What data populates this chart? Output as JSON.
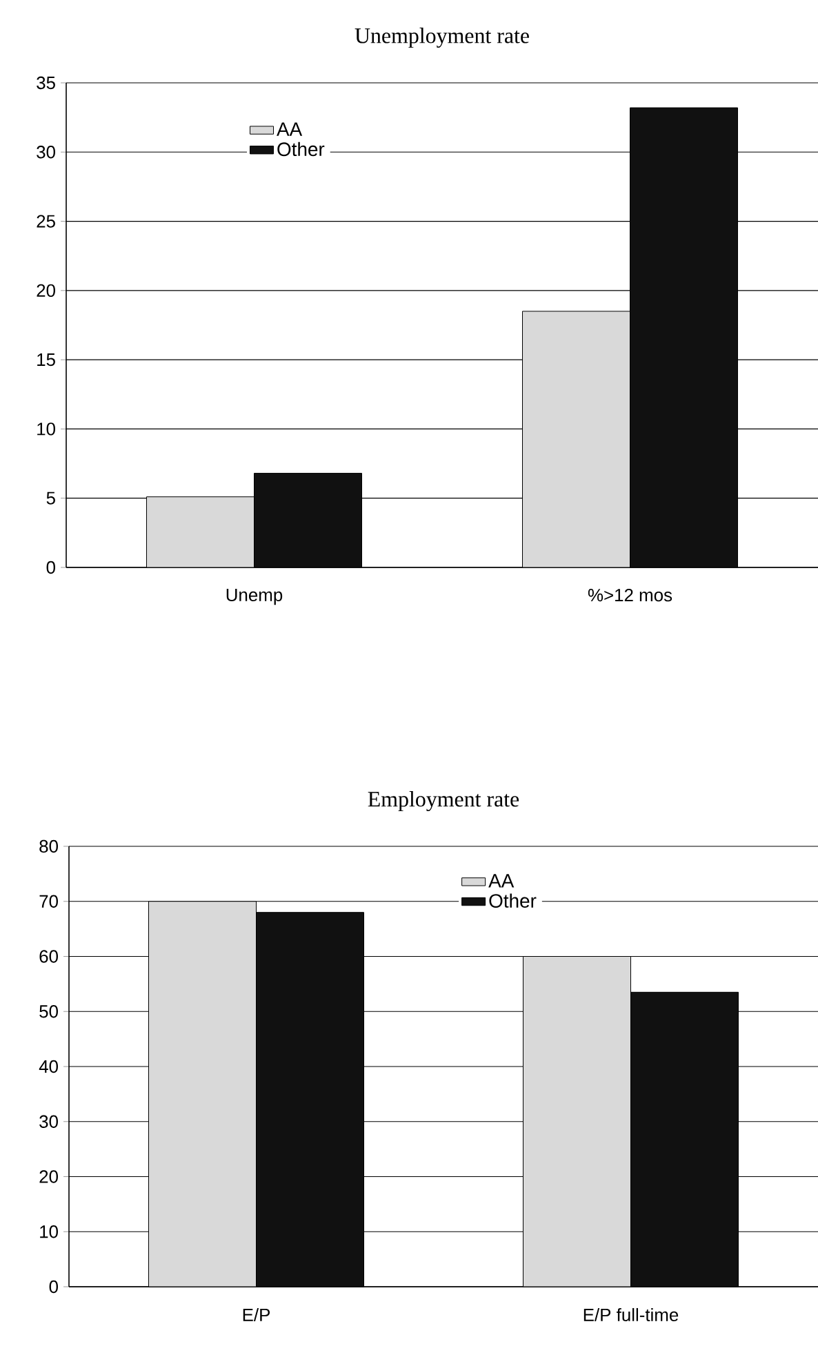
{
  "chart_data": [
    {
      "type": "bar",
      "title": "Unemployment rate",
      "categories": [
        "Unemp",
        "%>12 mos"
      ],
      "series": [
        {
          "name": "AA",
          "color": "#d9d9d9",
          "values": [
            5.1,
            18.5
          ]
        },
        {
          "name": "Other",
          "color": "#111111",
          "values": [
            6.8,
            33.2
          ]
        }
      ],
      "ylim": [
        0,
        35
      ],
      "yticks": [
        0,
        5,
        10,
        15,
        20,
        25,
        30,
        35
      ],
      "grid": "y",
      "legend": "top left"
    },
    {
      "type": "bar",
      "title": "Employment rate",
      "categories": [
        "E/P",
        "E/P full-time"
      ],
      "series": [
        {
          "name": "AA",
          "color": "#d9d9d9",
          "values": [
            70,
            60
          ]
        },
        {
          "name": "Other",
          "color": "#111111",
          "values": [
            68,
            53.5
          ]
        }
      ],
      "ylim": [
        0,
        80
      ],
      "yticks": [
        0,
        10,
        20,
        30,
        40,
        50,
        60,
        70,
        80
      ],
      "grid": "y",
      "legend": "top"
    }
  ]
}
